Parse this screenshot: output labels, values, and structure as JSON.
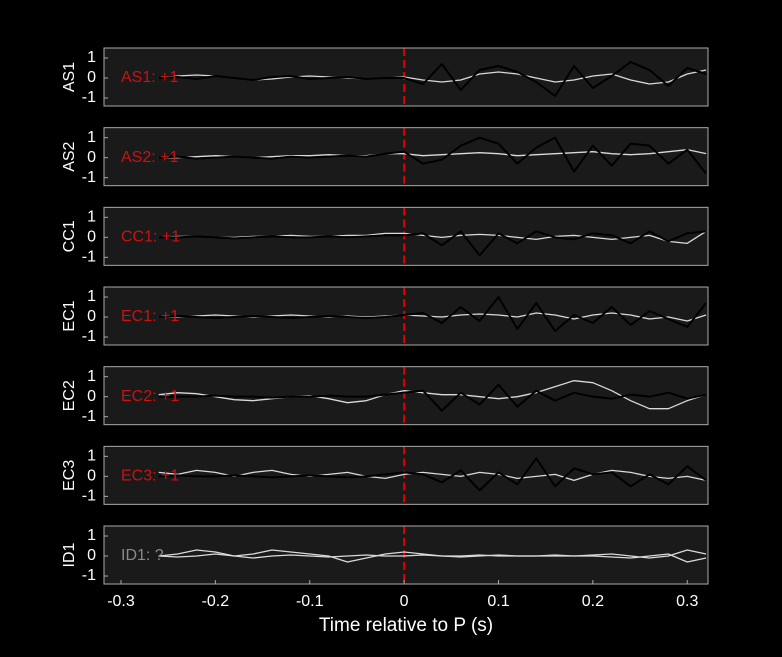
{
  "chart_data": [
    {
      "type": "line",
      "ylabel": "AS1",
      "annotation": "AS1: +1",
      "annotation_color": "#cc1111",
      "vline": 0,
      "vline_color": "#dd0000",
      "xlim": [
        -0.318,
        0.322
      ],
      "ylim": [
        -1.4,
        1.5
      ],
      "yticks": [
        -1,
        0,
        1
      ],
      "x": [
        -0.26,
        -0.24,
        -0.22,
        -0.2,
        -0.18,
        -0.16,
        -0.14,
        -0.12,
        -0.1,
        -0.08,
        -0.06,
        -0.04,
        -0.02,
        0,
        0.02,
        0.04,
        0.06,
        0.08,
        0.1,
        0.12,
        0.14,
        0.16,
        0.18,
        0.2,
        0.22,
        0.24,
        0.26,
        0.28,
        0.3,
        0.32
      ],
      "series": [
        {
          "color": "#d9d9d9",
          "values": [
            0,
            0.1,
            0.15,
            0.1,
            0,
            -0.1,
            -0.05,
            0.05,
            0.1,
            0.05,
            0,
            -0.05,
            0,
            0.05,
            -0.1,
            -0.2,
            -0.1,
            0.2,
            0.3,
            0.2,
            0,
            -0.2,
            -0.1,
            0.1,
            0.2,
            -0.1,
            -0.3,
            -0.2,
            0.2,
            0.4
          ]
        },
        {
          "color": "#000000",
          "values": [
            0,
            0.05,
            -0.05,
            0.1,
            0,
            -0.1,
            0.05,
            0.1,
            -0.05,
            0,
            0.05,
            -0.05,
            0,
            0,
            -0.3,
            0.7,
            -0.6,
            0.4,
            0.6,
            0.3,
            -0.2,
            -0.9,
            0.6,
            -0.5,
            0.1,
            0.8,
            0.4,
            -0.4,
            0.5,
            0.2
          ]
        }
      ]
    },
    {
      "type": "line",
      "ylabel": "AS2",
      "annotation": "AS2: +1",
      "annotation_color": "#cc1111",
      "vline": 0,
      "vline_color": "#dd0000",
      "xlim": [
        -0.318,
        0.322
      ],
      "ylim": [
        -1.4,
        1.5
      ],
      "yticks": [
        -1,
        0,
        1
      ],
      "x": [
        -0.26,
        -0.24,
        -0.22,
        -0.2,
        -0.18,
        -0.16,
        -0.14,
        -0.12,
        -0.1,
        -0.08,
        -0.06,
        -0.04,
        -0.02,
        0,
        0.02,
        0.04,
        0.06,
        0.08,
        0.1,
        0.12,
        0.14,
        0.16,
        0.18,
        0.2,
        0.22,
        0.24,
        0.26,
        0.28,
        0.3,
        0.32
      ],
      "series": [
        {
          "color": "#d9d9d9",
          "values": [
            0,
            0,
            0.05,
            0.1,
            0.05,
            0,
            0.05,
            0.1,
            0.1,
            0.15,
            0.1,
            0.1,
            0.2,
            0.2,
            0.1,
            0.15,
            0.2,
            0.25,
            0.2,
            0.1,
            0.15,
            0.2,
            0.25,
            0.3,
            0.2,
            0.15,
            0.2,
            0.3,
            0.4,
            0.2
          ]
        },
        {
          "color": "#000000",
          "values": [
            0,
            0.05,
            -0.05,
            0,
            0.05,
            0,
            -0.05,
            0.05,
            0,
            0.05,
            0.1,
            0.05,
            0.2,
            0.3,
            -0.3,
            -0.1,
            0.6,
            1.0,
            0.7,
            -0.3,
            0.5,
            1.0,
            -0.7,
            0.6,
            -0.4,
            0.7,
            0.6,
            -0.3,
            0.4,
            -0.8
          ]
        }
      ]
    },
    {
      "type": "line",
      "ylabel": "CC1",
      "annotation": "CC1: +1",
      "annotation_color": "#cc1111",
      "vline": 0,
      "vline_color": "#dd0000",
      "xlim": [
        -0.318,
        0.322
      ],
      "ylim": [
        -1.4,
        1.5
      ],
      "yticks": [
        -1,
        0,
        1
      ],
      "x": [
        -0.26,
        -0.24,
        -0.22,
        -0.2,
        -0.18,
        -0.16,
        -0.14,
        -0.12,
        -0.1,
        -0.08,
        -0.06,
        -0.04,
        -0.02,
        0,
        0.02,
        0.04,
        0.06,
        0.08,
        0.1,
        0.12,
        0.14,
        0.16,
        0.18,
        0.2,
        0.22,
        0.24,
        0.26,
        0.28,
        0.3,
        0.32
      ],
      "series": [
        {
          "color": "#d9d9d9",
          "values": [
            0,
            0.05,
            0.05,
            0,
            0,
            0.05,
            0.05,
            0.1,
            0.05,
            0.05,
            0.1,
            0.1,
            0.2,
            0.2,
            0.1,
            0,
            0.1,
            0.15,
            0.1,
            0,
            -0.1,
            0.05,
            0.1,
            0,
            -0.1,
            0,
            0.1,
            -0.2,
            -0.3,
            0.3
          ]
        },
        {
          "color": "#000000",
          "values": [
            0,
            0,
            0.05,
            0,
            -0.05,
            0,
            0.05,
            0,
            0,
            0.05,
            0,
            0.05,
            0.1,
            0.1,
            0.2,
            -0.4,
            0.3,
            -0.9,
            0.2,
            -0.3,
            0.3,
            0,
            -0.1,
            0.2,
            0.1,
            -0.3,
            0.3,
            -0.2,
            0.2,
            0.3
          ]
        }
      ]
    },
    {
      "type": "line",
      "ylabel": "EC1",
      "annotation": "EC1: +1",
      "annotation_color": "#cc1111",
      "vline": 0,
      "vline_color": "#dd0000",
      "xlim": [
        -0.318,
        0.322
      ],
      "ylim": [
        -1.4,
        1.5
      ],
      "yticks": [
        -1,
        0,
        1
      ],
      "x": [
        -0.26,
        -0.24,
        -0.22,
        -0.2,
        -0.18,
        -0.16,
        -0.14,
        -0.12,
        -0.1,
        -0.08,
        -0.06,
        -0.04,
        -0.02,
        0,
        0.02,
        0.04,
        0.06,
        0.08,
        0.1,
        0.12,
        0.14,
        0.16,
        0.18,
        0.2,
        0.22,
        0.24,
        0.26,
        0.28,
        0.3,
        0.32
      ],
      "series": [
        {
          "color": "#d9d9d9",
          "values": [
            0,
            0,
            0.05,
            0.1,
            0.05,
            0,
            0.05,
            0.1,
            0.05,
            0,
            0.05,
            0,
            0.05,
            0.1,
            0.05,
            0,
            0.1,
            0.15,
            0.1,
            0,
            0.2,
            0.1,
            -0.1,
            0.1,
            0.2,
            0.1,
            -0.1,
            0,
            -0.2,
            0.1
          ]
        },
        {
          "color": "#000000",
          "values": [
            0,
            0.05,
            0,
            -0.05,
            0,
            0.05,
            0,
            -0.05,
            0,
            0.05,
            0,
            -0.05,
            0,
            0.1,
            0.2,
            -0.3,
            0.5,
            -0.2,
            1.0,
            -0.6,
            0.7,
            -0.7,
            0.1,
            -0.3,
            0.5,
            -0.4,
            0.3,
            -0.1,
            -0.5,
            0.7
          ]
        }
      ]
    },
    {
      "type": "line",
      "ylabel": "EC2",
      "annotation": "EC2: +1",
      "annotation_color": "#cc1111",
      "vline": 0,
      "vline_color": "#dd0000",
      "xlim": [
        -0.318,
        0.322
      ],
      "ylim": [
        -1.4,
        1.5
      ],
      "yticks": [
        -1,
        0,
        1
      ],
      "x": [
        -0.26,
        -0.24,
        -0.22,
        -0.2,
        -0.18,
        -0.16,
        -0.14,
        -0.12,
        -0.1,
        -0.08,
        -0.06,
        -0.04,
        -0.02,
        0,
        0.02,
        0.04,
        0.06,
        0.08,
        0.1,
        0.12,
        0.14,
        0.16,
        0.18,
        0.2,
        0.22,
        0.24,
        0.26,
        0.28,
        0.3,
        0.32
      ],
      "series": [
        {
          "color": "#d9d9d9",
          "values": [
            0.1,
            0.2,
            0.15,
            0,
            -0.15,
            -0.2,
            -0.1,
            0,
            0.05,
            -0.1,
            -0.3,
            -0.2,
            0.1,
            0.3,
            0.2,
            0.1,
            0.1,
            0,
            -0.1,
            0,
            0.2,
            0.5,
            0.8,
            0.7,
            0.3,
            -0.2,
            -0.6,
            -0.6,
            -0.2,
            0.1
          ]
        },
        {
          "color": "#000000",
          "values": [
            0,
            0,
            0,
            0.05,
            0,
            0,
            -0.05,
            0,
            0,
            0.05,
            0,
            0,
            0.1,
            0.2,
            0.3,
            -0.7,
            0.2,
            -0.4,
            0.6,
            -0.5,
            0.3,
            -0.2,
            0.2,
            0,
            -0.1,
            0.1,
            0,
            0.2,
            -0.1,
            0.1
          ]
        }
      ]
    },
    {
      "type": "line",
      "ylabel": "EC3",
      "annotation": "EC3: +1",
      "annotation_color": "#cc1111",
      "vline": 0,
      "vline_color": "#dd0000",
      "xlim": [
        -0.318,
        0.322
      ],
      "ylim": [
        -1.4,
        1.5
      ],
      "yticks": [
        -1,
        0,
        1
      ],
      "x": [
        -0.26,
        -0.24,
        -0.22,
        -0.2,
        -0.18,
        -0.16,
        -0.14,
        -0.12,
        -0.1,
        -0.08,
        -0.06,
        -0.04,
        -0.02,
        0,
        0.02,
        0.04,
        0.06,
        0.08,
        0.1,
        0.12,
        0.14,
        0.16,
        0.18,
        0.2,
        0.22,
        0.24,
        0.26,
        0.28,
        0.3,
        0.32
      ],
      "series": [
        {
          "color": "#d9d9d9",
          "values": [
            0.2,
            0.1,
            0.3,
            0.2,
            0,
            0.2,
            0.3,
            0.1,
            0,
            0.1,
            0.2,
            0,
            -0.1,
            0.1,
            0.2,
            0.1,
            0,
            0.2,
            0.1,
            -0.1,
            0,
            0.1,
            -0.2,
            0.1,
            0.3,
            0.2,
            0,
            -0.1,
            0,
            -0.2
          ]
        },
        {
          "color": "#000000",
          "values": [
            0,
            0.05,
            0,
            0,
            0.05,
            0,
            -0.05,
            0,
            0.05,
            0,
            -0.05,
            0,
            0.1,
            0.2,
            0.1,
            -0.3,
            0.3,
            -0.7,
            0.2,
            -0.4,
            0.9,
            -0.5,
            0.4,
            0.1,
            0.2,
            -0.5,
            0.1,
            -0.4,
            0.5,
            -0.2
          ]
        }
      ]
    },
    {
      "type": "line",
      "ylabel": "ID1",
      "annotation": "ID1: ?",
      "annotation_color": "#8a8a8a",
      "vline": 0,
      "vline_color": "#dd0000",
      "xlim": [
        -0.318,
        0.322
      ],
      "ylim": [
        -1.4,
        1.5
      ],
      "yticks": [
        -1,
        0,
        1
      ],
      "xticks": [
        -0.3,
        -0.2,
        -0.1,
        0,
        0.1,
        0.2,
        0.3
      ],
      "xlabel": "Time relative to P (s)",
      "x": [
        -0.26,
        -0.24,
        -0.22,
        -0.2,
        -0.18,
        -0.16,
        -0.14,
        -0.12,
        -0.1,
        -0.08,
        -0.06,
        -0.04,
        -0.02,
        0,
        0.02,
        0.04,
        0.06,
        0.08,
        0.1,
        0.12,
        0.14,
        0.16,
        0.18,
        0.2,
        0.22,
        0.24,
        0.26,
        0.28,
        0.3,
        0.32
      ],
      "series": [
        {
          "color": "#d9d9d9",
          "values": [
            0,
            0.1,
            0.3,
            0.2,
            0,
            0.1,
            0.3,
            0.2,
            0.1,
            0,
            -0.3,
            -0.1,
            0.1,
            0.2,
            0.1,
            0,
            0,
            0.05,
            0,
            0,
            0,
            0,
            0,
            0.05,
            0.1,
            0,
            -0.1,
            0,
            0.3,
            0.1
          ]
        },
        {
          "color": "#d9d9d9",
          "values": [
            0,
            -0.05,
            0,
            0.1,
            0,
            -0.1,
            0,
            0.05,
            0,
            -0.05,
            0,
            0.05,
            0,
            0,
            0.05,
            0,
            -0.05,
            0,
            0.05,
            0,
            0,
            0.05,
            0,
            0,
            -0.05,
            -0.1,
            0,
            0.1,
            -0.3,
            -0.1
          ]
        }
      ]
    }
  ]
}
